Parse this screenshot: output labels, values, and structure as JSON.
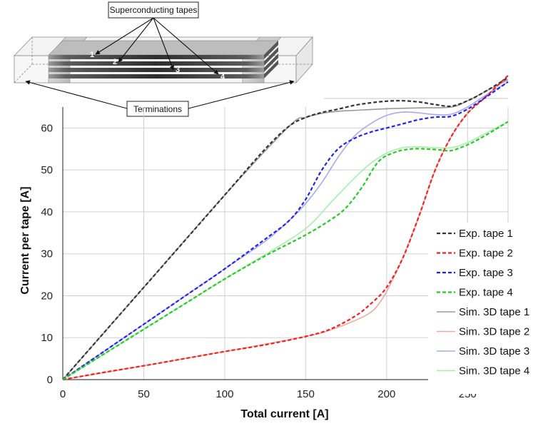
{
  "inset": {
    "top_callout": "Superconducting tapes",
    "bottom_callout": "Terminations",
    "tape_numbers": [
      "1",
      "2",
      "3",
      "4"
    ]
  },
  "colors": {
    "tape1": "#333333",
    "tape2": "#ee2222",
    "tape3": "#2222ee",
    "tape4": "#22cc22",
    "sim_tape1": "#999999",
    "sim_tape2": "#f0a8a0",
    "sim_tape3": "#a8a8f0",
    "sim_tape4": "#a8eea8",
    "grid": "#d0d0d0"
  },
  "chart_data": {
    "type": "line",
    "xlabel": "Total current [A]",
    "ylabel": "Current per tape [A]",
    "xlim": [
      0,
      275
    ],
    "ylim": [
      0,
      65
    ],
    "xticks": [
      0,
      50,
      100,
      150,
      200,
      250
    ],
    "yticks": [
      0,
      10,
      20,
      30,
      40,
      50,
      60
    ],
    "grid": true,
    "legend_position": "bottom-right",
    "series": [
      {
        "name": "Exp. tape 1",
        "style": "dashed",
        "color_key": "tape1",
        "x": [
          0,
          25,
          50,
          75,
          100,
          125,
          140,
          150,
          160,
          170,
          180,
          190,
          200,
          210,
          220,
          230,
          240,
          250,
          260,
          275
        ],
        "y": [
          0,
          11,
          22,
          33,
          44,
          55,
          60.5,
          62.5,
          63.7,
          64.5,
          65.4,
          66,
          66.4,
          66.5,
          66.2,
          65.6,
          65.2,
          66.5,
          68.5,
          72
        ]
      },
      {
        "name": "Exp. tape 2",
        "style": "dashed",
        "color_key": "tape2",
        "x": [
          0,
          25,
          50,
          75,
          100,
          125,
          150,
          165,
          180,
          190,
          200,
          210,
          220,
          230,
          240,
          250,
          260,
          275
        ],
        "y": [
          0,
          1.7,
          3.3,
          5,
          6.7,
          8.3,
          10.3,
          12,
          15,
          18,
          22,
          29,
          39,
          50,
          58,
          63.5,
          67,
          72.5
        ]
      },
      {
        "name": "Exp. tape 3",
        "style": "dashed",
        "color_key": "tape3",
        "x": [
          0,
          25,
          50,
          75,
          100,
          125,
          140,
          150,
          160,
          170,
          180,
          190,
          200,
          210,
          220,
          230,
          240,
          250,
          260,
          275
        ],
        "y": [
          0,
          6.6,
          13.2,
          19.8,
          26.4,
          33.5,
          38,
          43,
          50,
          55,
          57.5,
          59,
          60,
          61,
          62,
          62.6,
          62.8,
          64.5,
          67,
          71
        ]
      },
      {
        "name": "Exp. tape 4",
        "style": "dashed",
        "color_key": "tape4",
        "x": [
          0,
          25,
          50,
          75,
          100,
          125,
          150,
          165,
          175,
          185,
          195,
          205,
          215,
          225,
          235,
          240,
          250,
          260,
          275
        ],
        "y": [
          0,
          6,
          12,
          18,
          24,
          29.5,
          34.5,
          38,
          41,
          46,
          52,
          54.2,
          55,
          55,
          54.7,
          54.6,
          56,
          58,
          61.5
        ]
      },
      {
        "name": "Sim. 3D tape 1",
        "style": "solid",
        "color_key": "sim_tape1",
        "x": [
          0,
          50,
          100,
          140,
          150,
          160,
          170,
          180,
          200,
          220,
          240,
          250,
          260,
          275
        ],
        "y": [
          0,
          22,
          44,
          60.5,
          62.5,
          63.5,
          64,
          64.2,
          64.6,
          64.8,
          65,
          66.5,
          68.5,
          71.5
        ]
      },
      {
        "name": "Sim. 3D tape 2",
        "style": "solid",
        "color_key": "sim_tape2",
        "x": [
          0,
          50,
          100,
          150,
          165,
          180,
          190,
          195,
          200,
          210,
          220,
          230,
          240,
          250,
          260,
          275
        ],
        "y": [
          0,
          3.3,
          6.7,
          10.3,
          11.8,
          14,
          16,
          18,
          21,
          29,
          39,
          50,
          58,
          63.5,
          67,
          72.5
        ]
      },
      {
        "name": "Sim. 3D tape 3",
        "style": "solid",
        "color_key": "sim_tape3",
        "x": [
          0,
          50,
          100,
          125,
          140,
          150,
          160,
          170,
          180,
          190,
          200,
          210,
          220,
          230,
          240,
          250,
          260,
          275
        ],
        "y": [
          0,
          13.2,
          26.4,
          33,
          38,
          42,
          47,
          53,
          58,
          61,
          63,
          63.8,
          63.6,
          63.2,
          63.3,
          65,
          67.5,
          71
        ]
      },
      {
        "name": "Sim. 3D tape 4",
        "style": "solid",
        "color_key": "sim_tape4",
        "x": [
          0,
          50,
          100,
          125,
          150,
          165,
          180,
          190,
          200,
          210,
          220,
          230,
          240,
          250,
          260,
          275
        ],
        "y": [
          0,
          12,
          24,
          29.8,
          36,
          42,
          48,
          51.5,
          54,
          55.3,
          55.5,
          55.3,
          55.3,
          56.5,
          58.5,
          61.5
        ]
      }
    ]
  }
}
